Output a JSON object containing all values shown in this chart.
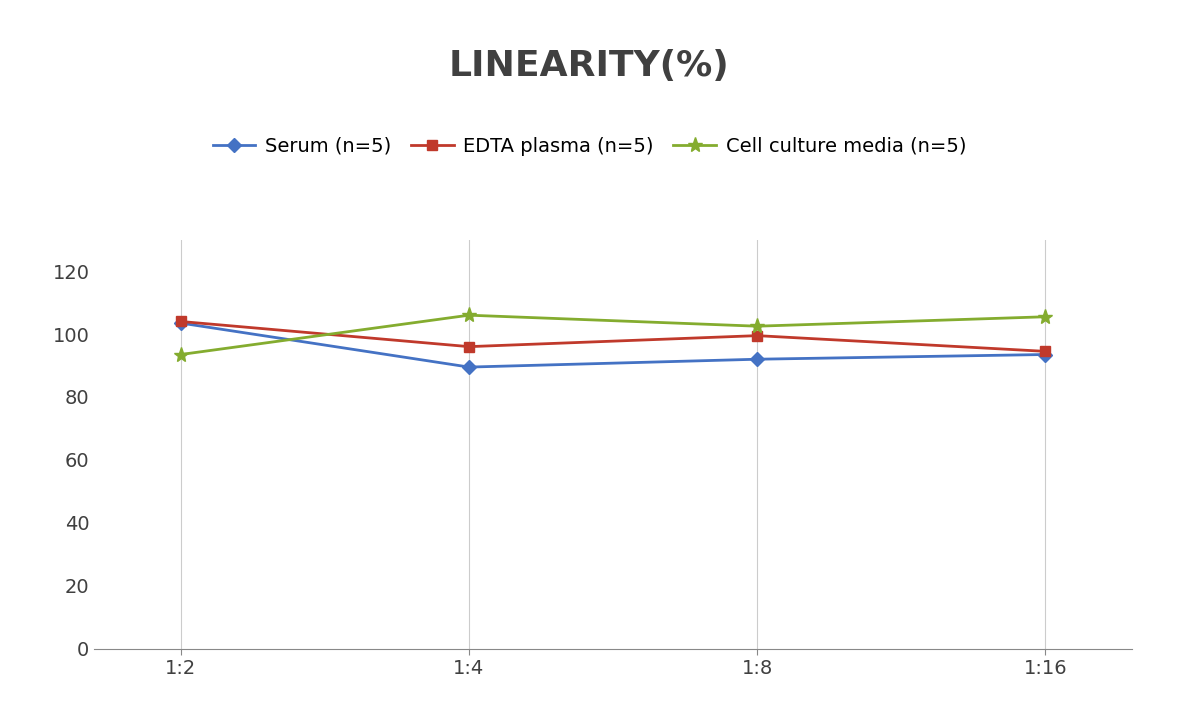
{
  "title": "LINEARITY(%)",
  "x_labels": [
    "1:2",
    "1:4",
    "1:8",
    "1:16"
  ],
  "x_positions": [
    0,
    1,
    2,
    3
  ],
  "series": [
    {
      "label": "Serum (n=5)",
      "values": [
        103.5,
        89.5,
        92.0,
        93.5
      ],
      "color": "#4472C4",
      "marker": "D",
      "marker_size": 7,
      "linewidth": 2.0
    },
    {
      "label": "EDTA plasma (n=5)",
      "values": [
        104.0,
        96.0,
        99.5,
        94.5
      ],
      "color": "#C0392B",
      "marker": "s",
      "marker_size": 7,
      "linewidth": 2.0
    },
    {
      "label": "Cell culture media (n=5)",
      "values": [
        93.5,
        106.0,
        102.5,
        105.5
      ],
      "color": "#84AC2F",
      "marker": "*",
      "marker_size": 11,
      "linewidth": 2.0
    }
  ],
  "ylim": [
    0,
    130
  ],
  "yticks": [
    0,
    20,
    40,
    60,
    80,
    100,
    120
  ],
  "background_color": "#FFFFFF",
  "grid_color": "#CCCCCC",
  "title_fontsize": 26,
  "legend_fontsize": 14,
  "tick_fontsize": 14,
  "title_color": "#404040"
}
